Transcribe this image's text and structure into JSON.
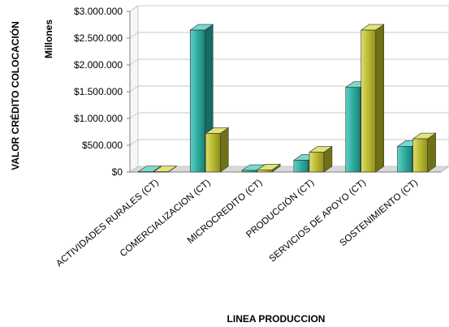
{
  "chart_data": {
    "type": "bar",
    "style": "3d-clustered-column",
    "xlabel": "LINEA PRODUCCION",
    "ylabel": "VALOR CRÉDITO COLOCACIÓN",
    "units_label": "Millones",
    "ylim": [
      0,
      3000000
    ],
    "yticks": [
      {
        "value": 0,
        "label": "$0"
      },
      {
        "value": 500000,
        "label": "$500.000"
      },
      {
        "value": 1000000,
        "label": "$1.000.000"
      },
      {
        "value": 1500000,
        "label": "$1.500.000"
      },
      {
        "value": 2000000,
        "label": "$2.000.000"
      },
      {
        "value": 2500000,
        "label": "$2.500.000"
      },
      {
        "value": 3000000,
        "label": "$3.000.000"
      }
    ],
    "grid": true,
    "legend": "none",
    "categories": [
      "ACTIVIDADES RURALES (CT)",
      "COMERCIALIZACION (CT)",
      "MICROCREDITO (CT)",
      "PRODUCCIÓN (CT)",
      "SERVICIOS DE APOYO (CT)",
      "SOSTENIMIENTO (CT)"
    ],
    "series": [
      {
        "color": "#2aa89a",
        "values": [
          5000,
          2650000,
          30000,
          220000,
          1580000,
          480000
        ]
      },
      {
        "color": "#b5b52e",
        "values": [
          5000,
          720000,
          40000,
          370000,
          2650000,
          620000
        ]
      }
    ]
  }
}
